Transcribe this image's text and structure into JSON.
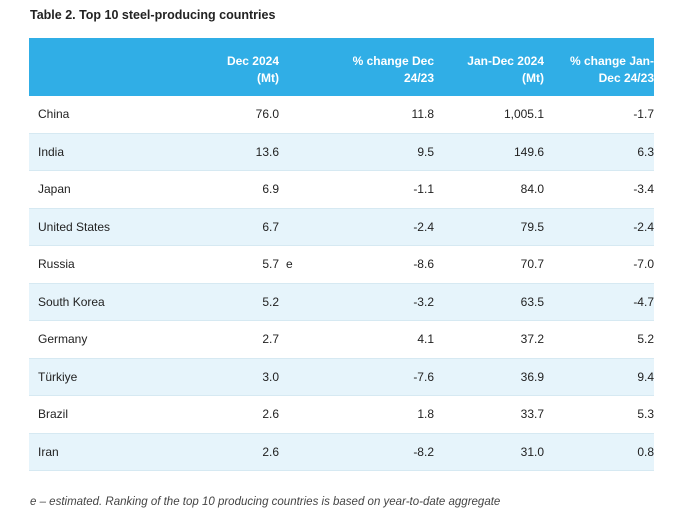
{
  "title": "Table 2. Top 10 steel-producing countries",
  "headers": {
    "country": "",
    "dec2024": "Dec 2024\n(Mt)",
    "flag": "",
    "pct_dec": "% change Dec\n24/23",
    "jan_dec": "Jan-Dec 2024\n(Mt)",
    "pct_jan_dec": "% change Jan-\nDec 24/23"
  },
  "rows": [
    {
      "country": "China",
      "dec2024": "76.0",
      "flag": "",
      "pct_dec": "11.8",
      "jan_dec": "1,005.1",
      "pct_jan_dec": "-1.7"
    },
    {
      "country": "India",
      "dec2024": "13.6",
      "flag": "",
      "pct_dec": "9.5",
      "jan_dec": "149.6",
      "pct_jan_dec": "6.3"
    },
    {
      "country": "Japan",
      "dec2024": "6.9",
      "flag": "",
      "pct_dec": "-1.1",
      "jan_dec": "84.0",
      "pct_jan_dec": "-3.4"
    },
    {
      "country": "United States",
      "dec2024": "6.7",
      "flag": "",
      "pct_dec": "-2.4",
      "jan_dec": "79.5",
      "pct_jan_dec": "-2.4"
    },
    {
      "country": "Russia",
      "dec2024": "5.7",
      "flag": "e",
      "pct_dec": "-8.6",
      "jan_dec": "70.7",
      "pct_jan_dec": "-7.0"
    },
    {
      "country": "South Korea",
      "dec2024": "5.2",
      "flag": "",
      "pct_dec": "-3.2",
      "jan_dec": "63.5",
      "pct_jan_dec": "-4.7"
    },
    {
      "country": "Germany",
      "dec2024": "2.7",
      "flag": "",
      "pct_dec": "4.1",
      "jan_dec": "37.2",
      "pct_jan_dec": "5.2"
    },
    {
      "country": "Türkiye",
      "dec2024": "3.0",
      "flag": "",
      "pct_dec": "-7.6",
      "jan_dec": "36.9",
      "pct_jan_dec": "9.4"
    },
    {
      "country": "Brazil",
      "dec2024": "2.6",
      "flag": "",
      "pct_dec": "1.8",
      "jan_dec": "33.7",
      "pct_jan_dec": "5.3"
    },
    {
      "country": "Iran",
      "dec2024": "2.6",
      "flag": "",
      "pct_dec": "-8.2",
      "jan_dec": "31.0",
      "pct_jan_dec": "0.8"
    }
  ],
  "footnote": "e – estimated. Ranking of the top 10 producing countries is based on year-to-date aggregate",
  "colors": {
    "header_bg": "#30aee6",
    "alt_row_bg": "#e6f4fb"
  }
}
